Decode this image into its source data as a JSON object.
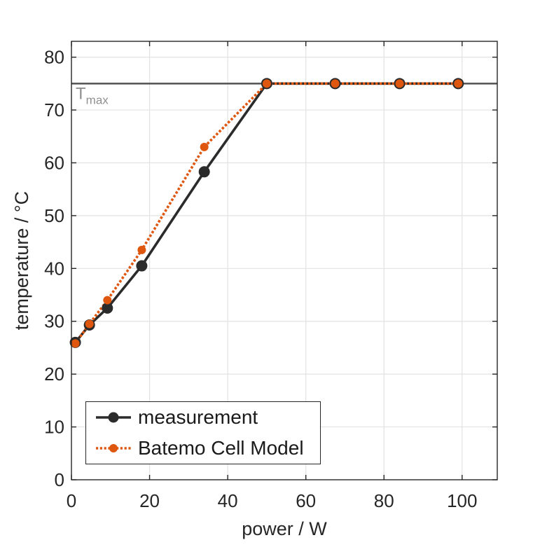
{
  "window": {
    "background": "#ffffff"
  },
  "chart_data": {
    "type": "line",
    "title": "",
    "xlabel": "power / W",
    "ylabel": "temperature / °C",
    "xlim": [
      0,
      109
    ],
    "ylim": [
      0,
      83
    ],
    "xticks": [
      0,
      20,
      40,
      60,
      80,
      100
    ],
    "yticks": [
      0,
      10,
      20,
      30,
      40,
      50,
      60,
      70,
      80
    ],
    "grid": true,
    "legend_position": "southwest-inside",
    "colors": {
      "axis": "#262626",
      "grid": "#e2e2e2",
      "tick_text": "#262626",
      "reference_line": "#595959",
      "reference_label": "#909090",
      "measurement": "#2b2b2b",
      "model": "#df570f"
    },
    "reference_line": {
      "y": 75,
      "label_main": "T",
      "label_sub": "max"
    },
    "series": [
      {
        "name": "measurement",
        "color": "#2b2b2b",
        "line_style": "solid",
        "line_width": 3.6,
        "marker": "filled-circle",
        "marker_radius": 8,
        "x": [
          1,
          4.6,
          9.2,
          18,
          34,
          50,
          67.5,
          84,
          99
        ],
        "y": [
          26,
          29.3,
          32.5,
          40.5,
          58.3,
          75,
          75,
          75,
          75
        ]
      },
      {
        "name": "Batemo Cell Model",
        "color": "#df570f",
        "line_style": "dotted",
        "line_width": 3.6,
        "marker": "filled-circle",
        "marker_radius": 6,
        "x": [
          1,
          4.6,
          9.2,
          18,
          34,
          50,
          67.5,
          84,
          99
        ],
        "y": [
          25.8,
          29.5,
          34,
          43.5,
          63,
          75,
          75,
          75,
          75
        ]
      }
    ]
  }
}
